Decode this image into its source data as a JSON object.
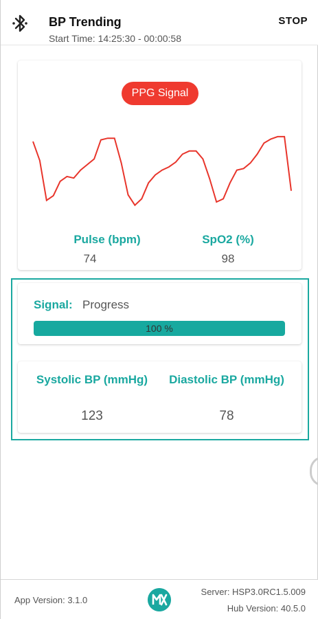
{
  "header": {
    "title": "BP Trending",
    "subtitle": "Start Time: 14:25:30 - 00:00:58",
    "stop_label": "STOP",
    "bluetooth_icon": "bluetooth-icon"
  },
  "ppg_card": {
    "pill_label": "PPG Signal",
    "pill_color": "#ef3a2f",
    "pulse_label": "Pulse (bpm)",
    "pulse_value": "74",
    "spo2_label": "SpO2 (%)",
    "spo2_value": "98"
  },
  "chart_data": {
    "type": "line",
    "series": [
      {
        "color": "#e8352b",
        "values": [
          0.82,
          0.58,
          0.08,
          0.14,
          0.32,
          0.38,
          0.36,
          0.46,
          0.53,
          0.6,
          0.84,
          0.86,
          0.86,
          0.55,
          0.15,
          0.02,
          0.1,
          0.3,
          0.4,
          0.46,
          0.5,
          0.56,
          0.66,
          0.7,
          0.7,
          0.6,
          0.35,
          0.06,
          0.1,
          0.3,
          0.46,
          0.48,
          0.55,
          0.66,
          0.8,
          0.85,
          0.88,
          0.88,
          0.2
        ]
      }
    ]
  },
  "signal_card": {
    "label": "Signal:",
    "value": "Progress",
    "progress_percent": 100,
    "progress_text": "100 %",
    "progress_color": "#17a99f"
  },
  "bp_card": {
    "systolic_label": "Systolic BP (mmHg)",
    "systolic_value": "123",
    "diastolic_label": "Diastolic BP (mmHg)",
    "diastolic_value": "78"
  },
  "footer": {
    "app_version": "App Version: 3.1.0",
    "server": "Server: HSP3.0RC1.5.009",
    "hub_version": "Hub Version: 40.5.0",
    "logo_icon": "maxim-logo-icon"
  },
  "colors": {
    "accent": "#1aa8a0"
  }
}
